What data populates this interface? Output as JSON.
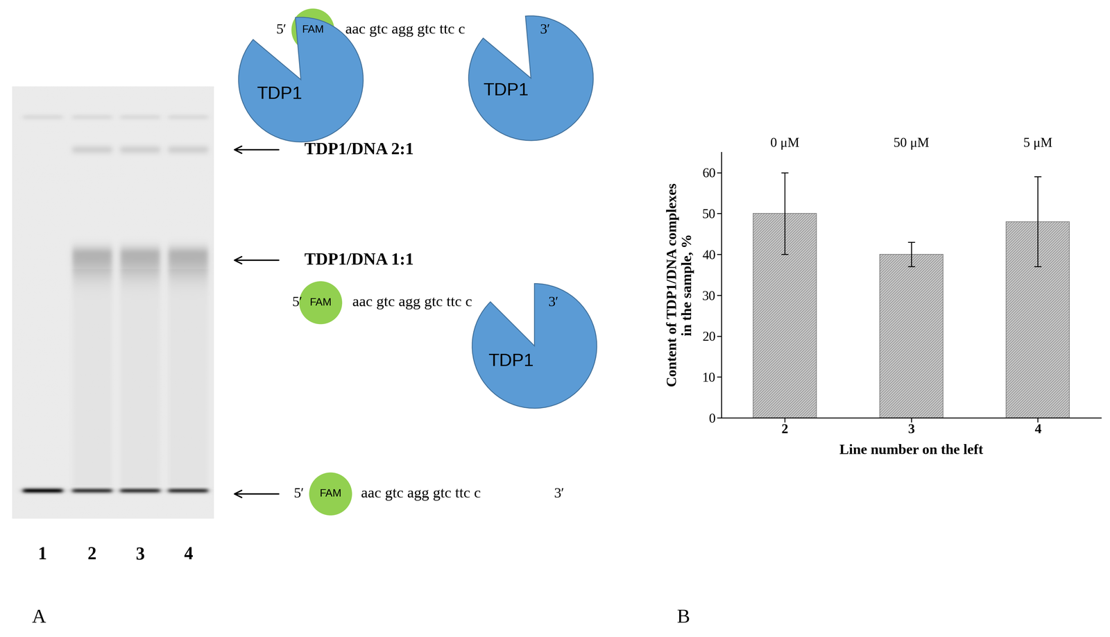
{
  "panel_a": {
    "label": "A",
    "lanes": [
      "1",
      "2",
      "3",
      "4"
    ],
    "bands": [
      "TDP1/DNA 2:1",
      "TDP1/DNA 1:1"
    ],
    "oligo": {
      "five_prime": "5′",
      "fluorophore": "FAM",
      "sequence": "aac gtc agg gtc ttc c",
      "three_prime": "3′"
    },
    "protein": "TDP1"
  },
  "panel_b": {
    "label": "B"
  },
  "chart_data": {
    "type": "bar",
    "categories": [
      "2",
      "3",
      "4"
    ],
    "values": [
      50,
      40,
      48
    ],
    "errors": [
      10,
      3,
      11
    ],
    "annotations": [
      "0 μM",
      "50 μM",
      "5 μM"
    ],
    "xlabel": "Line number on the left",
    "ylabel": "Content of TDP1/DNA complexes\nin the sample, %",
    "ylim": [
      0,
      65
    ],
    "yticks": [
      0,
      10,
      20,
      30,
      40,
      50,
      60
    ],
    "color": "#c8c8c8"
  }
}
